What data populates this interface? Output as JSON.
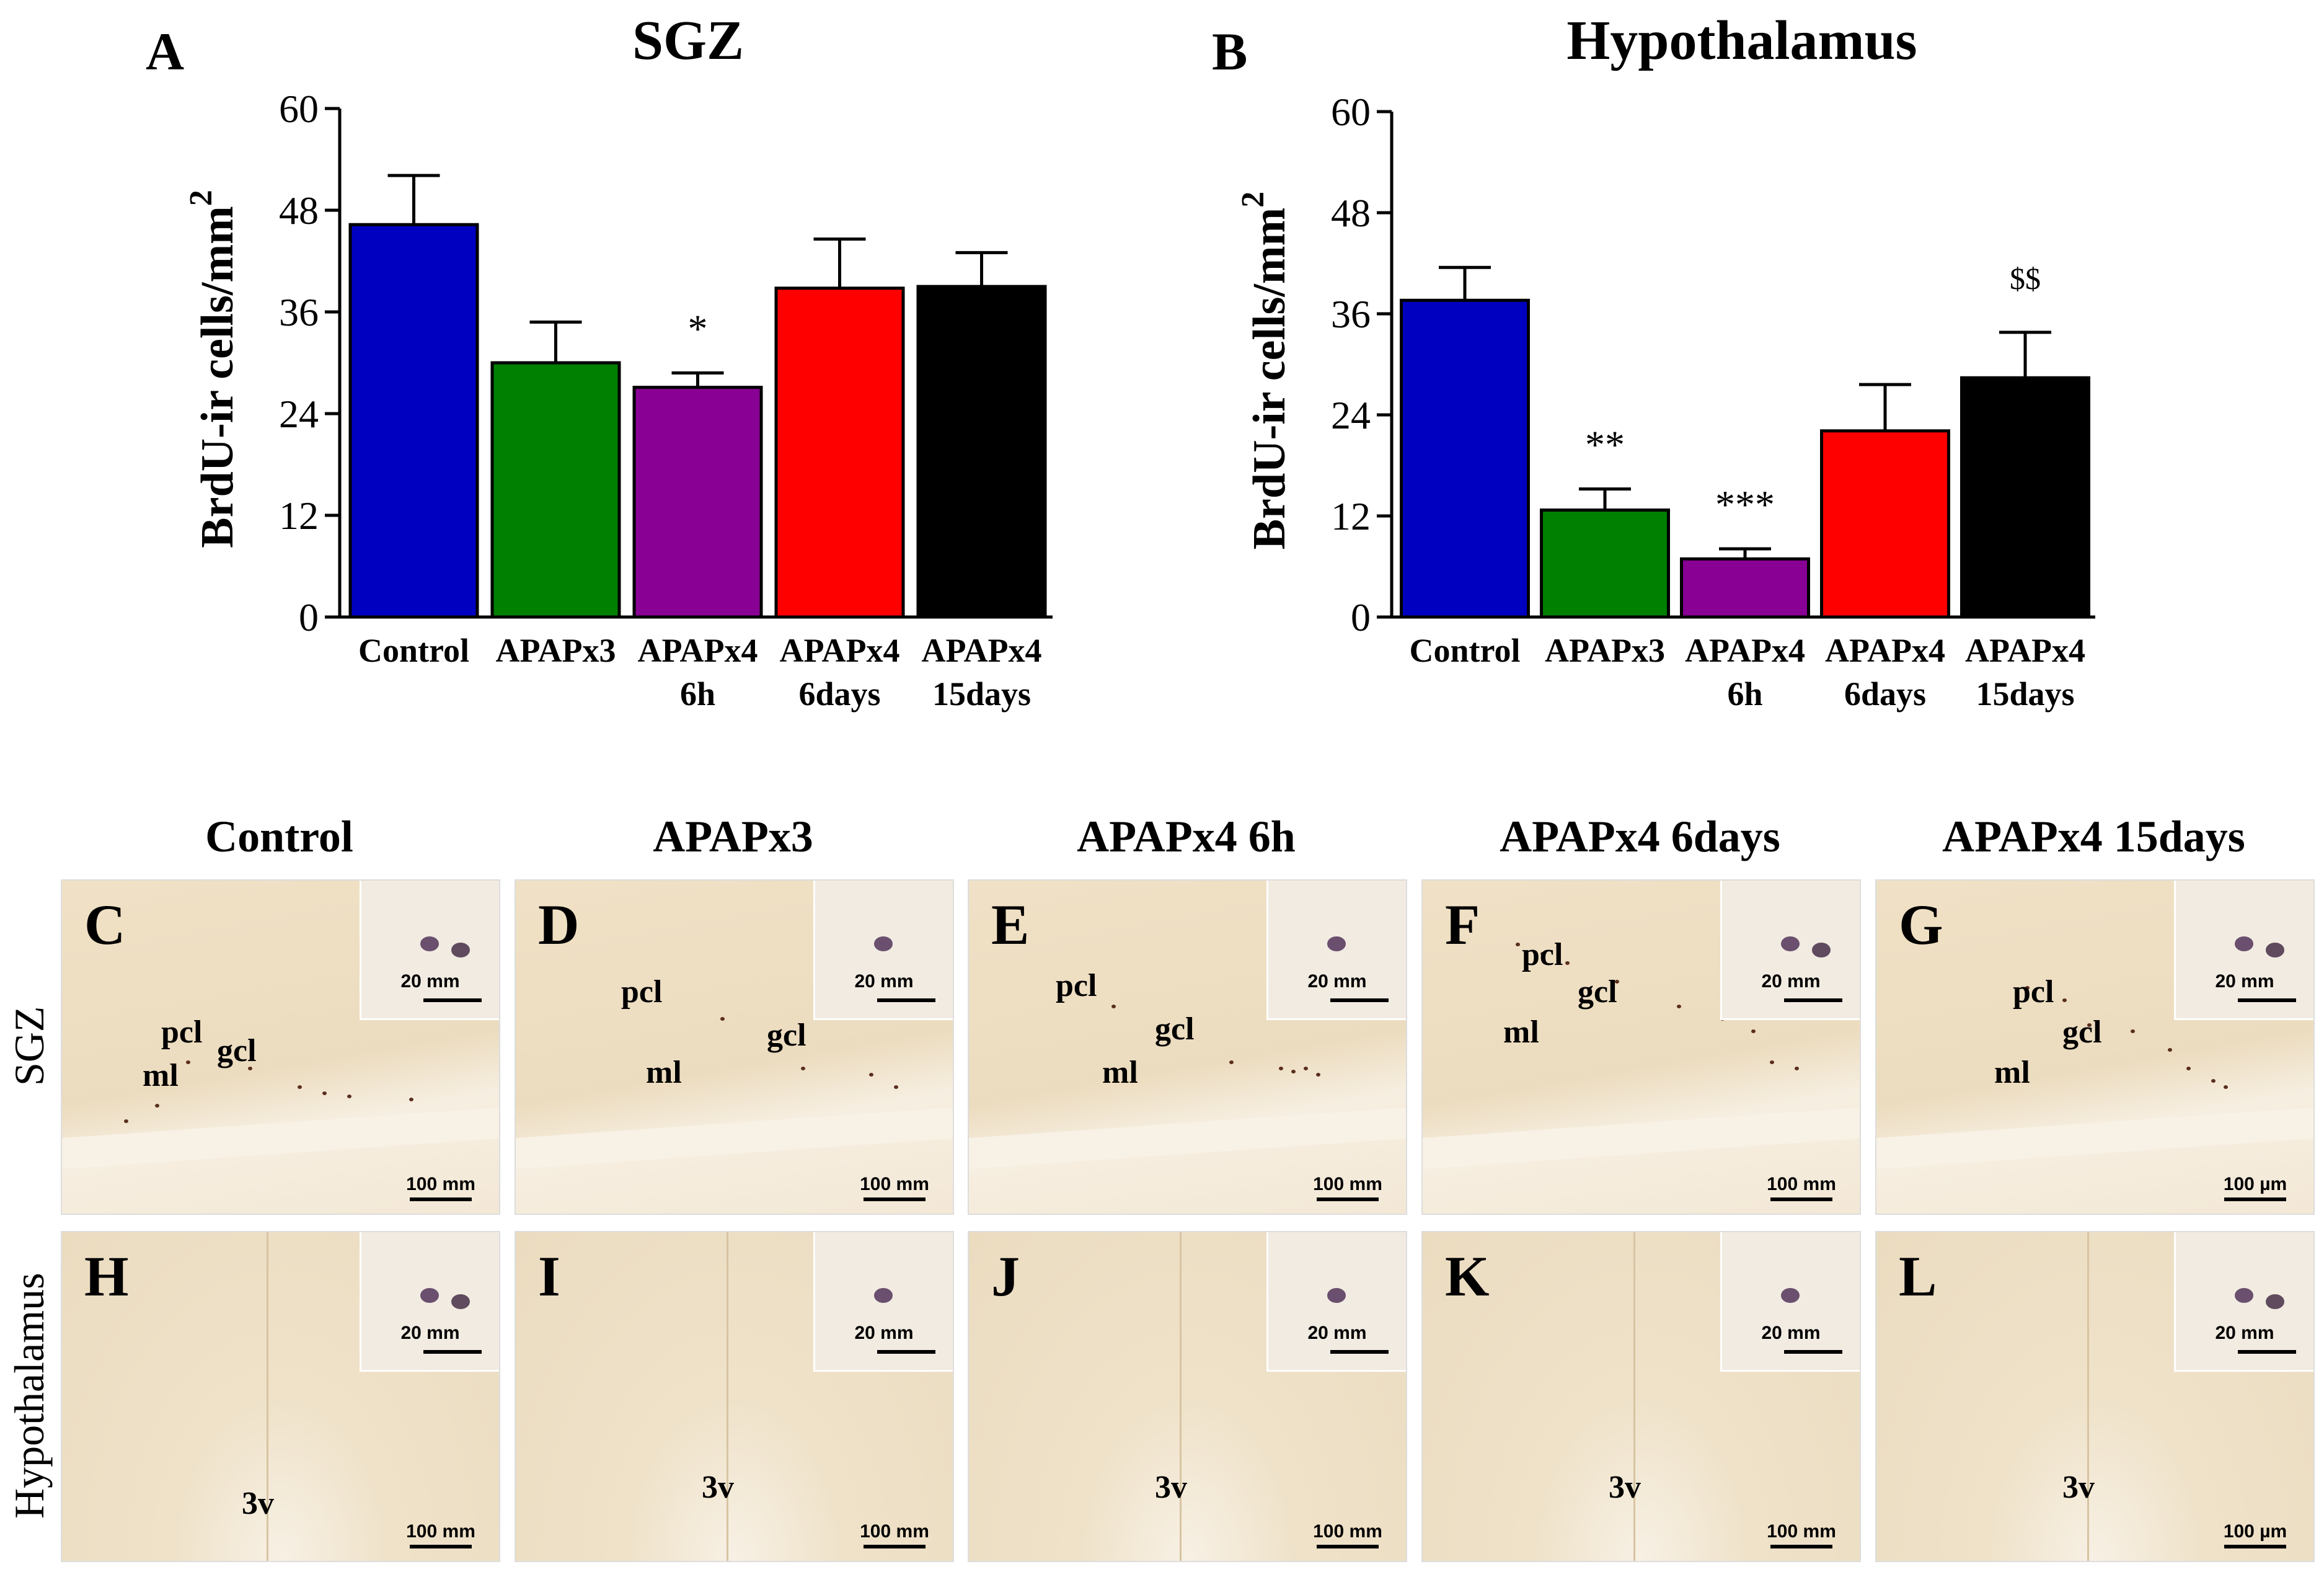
{
  "chart_data": [
    {
      "type": "bar",
      "panel_letter": "A",
      "title": "SGZ",
      "ylabel": "BrdU-ir cells/mm",
      "ylabel_sup": "2",
      "ylim": [
        0,
        60
      ],
      "yticks": [
        "0",
        "12",
        "24",
        "36",
        "48",
        "60"
      ],
      "categories": [
        {
          "line1": "Control",
          "line2": ""
        },
        {
          "line1": "APAPx3",
          "line2": ""
        },
        {
          "line1": "APAPx4",
          "line2": "6h"
        },
        {
          "line1": "APAPx4",
          "line2": "6days"
        },
        {
          "line1": "APAPx4",
          "line2": "15days"
        }
      ],
      "values": [
        46.3,
        30.0,
        27.1,
        38.8,
        39.0
      ],
      "errors": [
        5.8,
        4.8,
        1.7,
        5.8,
        4.0
      ],
      "colors": [
        "#0000c0",
        "#008000",
        "#880094",
        "#ff0000",
        "#000000"
      ],
      "annotations": [
        "",
        "",
        "*",
        "",
        ""
      ]
    },
    {
      "type": "bar",
      "panel_letter": "B",
      "title": "Hypothalamus",
      "ylabel": "BrdU-ir cells/mm",
      "ylabel_sup": "2",
      "ylim": [
        0,
        60
      ],
      "yticks": [
        "0",
        "12",
        "24",
        "36",
        "48",
        "60"
      ],
      "categories": [
        {
          "line1": "Control",
          "line2": ""
        },
        {
          "line1": "APAPx3",
          "line2": ""
        },
        {
          "line1": "APAPx4",
          "line2": "6h"
        },
        {
          "line1": "APAPx4",
          "line2": "6days"
        },
        {
          "line1": "APAPx4",
          "line2": "15days"
        }
      ],
      "values": [
        37.6,
        12.7,
        6.9,
        22.1,
        28.4
      ],
      "errors": [
        3.9,
        2.5,
        1.2,
        5.5,
        5.4
      ],
      "colors": [
        "#0000c0",
        "#008000",
        "#880094",
        "#ff0000",
        "#000000"
      ],
      "annotations": [
        "",
        "**",
        "***",
        "",
        "$$"
      ]
    }
  ],
  "micrographs": {
    "column_titles": [
      "Control",
      "APAPx3",
      "APAPx4 6h",
      "APAPx4 6days",
      "APAPx4 15days"
    ],
    "row_titles": [
      "SGZ",
      "Hypothalamus"
    ],
    "rows": [
      {
        "panels": [
          {
            "letter": "C",
            "regions": [
              "pcl",
              "gcl",
              "ml"
            ],
            "inset_scale": "20 mm",
            "scale": "100 mm"
          },
          {
            "letter": "D",
            "regions": [
              "pcl",
              "gcl",
              "ml"
            ],
            "inset_scale": "20 mm",
            "scale": "100 mm"
          },
          {
            "letter": "E",
            "regions": [
              "pcl",
              "gcl",
              "ml"
            ],
            "inset_scale": "20 mm",
            "scale": "100 mm"
          },
          {
            "letter": "F",
            "regions": [
              "pcl",
              "gcl",
              "ml"
            ],
            "inset_scale": "20 mm",
            "scale": "100 mm"
          },
          {
            "letter": "G",
            "regions": [
              "pcl",
              "gcl",
              "ml"
            ],
            "inset_scale": "20 mm",
            "scale": "100 µm"
          }
        ]
      },
      {
        "panels": [
          {
            "letter": "H",
            "regions": [
              "3v"
            ],
            "inset_scale": "20 mm",
            "scale": "100 mm"
          },
          {
            "letter": "I",
            "regions": [
              "3v"
            ],
            "inset_scale": "20 mm",
            "scale": "100 mm"
          },
          {
            "letter": "J",
            "regions": [
              "3v"
            ],
            "inset_scale": "20 mm",
            "scale": "100 mm"
          },
          {
            "letter": "K",
            "regions": [
              "3v"
            ],
            "inset_scale": "20 mm",
            "scale": "100 mm"
          },
          {
            "letter": "L",
            "regions": [
              "3v"
            ],
            "inset_scale": "20 mm",
            "scale": "100 µm"
          }
        ]
      }
    ]
  }
}
